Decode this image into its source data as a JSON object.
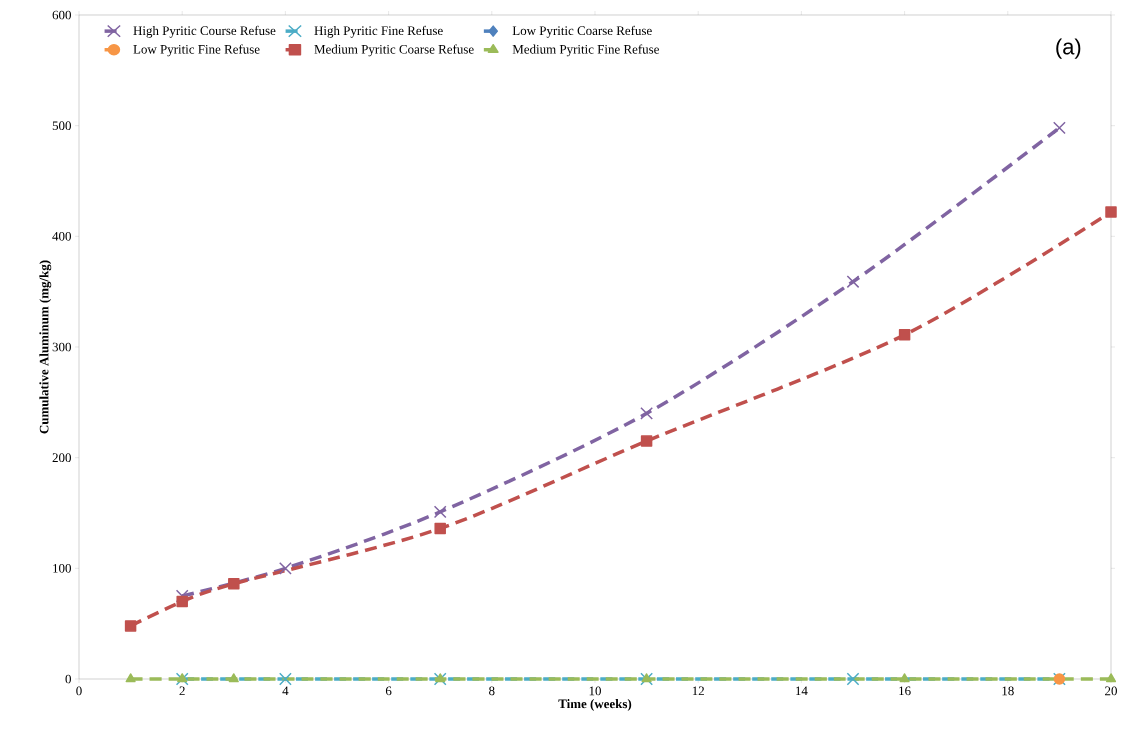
{
  "chart_data": {
    "type": "line",
    "xlabel": "Time (weeks)",
    "ylabel": "Cumulative Aluminum (mg/kg)",
    "xlim": [
      0,
      20
    ],
    "xticks": [
      0,
      2,
      4,
      6,
      8,
      10,
      12,
      14,
      16,
      18,
      20
    ],
    "ylim": [
      0,
      600
    ],
    "yticks": [
      0,
      100,
      200,
      300,
      400,
      500,
      600
    ],
    "grid": false,
    "legend": "top left",
    "line_style": "dashed",
    "annotations": [
      "(a)"
    ],
    "series": [
      {
        "name": "High Pyritic Course Refuse",
        "color": "#8064a2",
        "marker": "cross",
        "x": [
          2,
          4,
          7,
          11,
          15,
          19
        ],
        "values": [
          75,
          100,
          151,
          240,
          359,
          498
        ]
      },
      {
        "name": "High Pyritic Fine Refuse",
        "color": "#4bacc6",
        "marker": "cross",
        "x": [
          2,
          4,
          7,
          11,
          15,
          19
        ],
        "values": [
          0,
          0,
          0,
          0,
          0,
          0
        ]
      },
      {
        "name": "Low Pyritic Coarse Refuse",
        "color": "#4f81bd",
        "marker": "diamond"
      },
      {
        "name": "Low Pyritic Fine Refuse",
        "color": "#f79646",
        "marker": "circle",
        "x": [
          19
        ],
        "values": [
          0
        ]
      },
      {
        "name": "Medium Pyritic Coarse Refuse",
        "color": "#c0504d",
        "marker": "square",
        "x": [
          1,
          2,
          3,
          7,
          11,
          16,
          20
        ],
        "values": [
          48,
          70,
          86,
          136,
          215,
          311,
          422
        ]
      },
      {
        "name": "Medium Pyritic Fine Refuse",
        "color": "#9bbb59",
        "marker": "triangle",
        "x": [
          1,
          2,
          3,
          7,
          11,
          16,
          20
        ],
        "values": [
          0,
          0,
          0,
          0,
          0,
          0,
          0
        ]
      }
    ]
  }
}
